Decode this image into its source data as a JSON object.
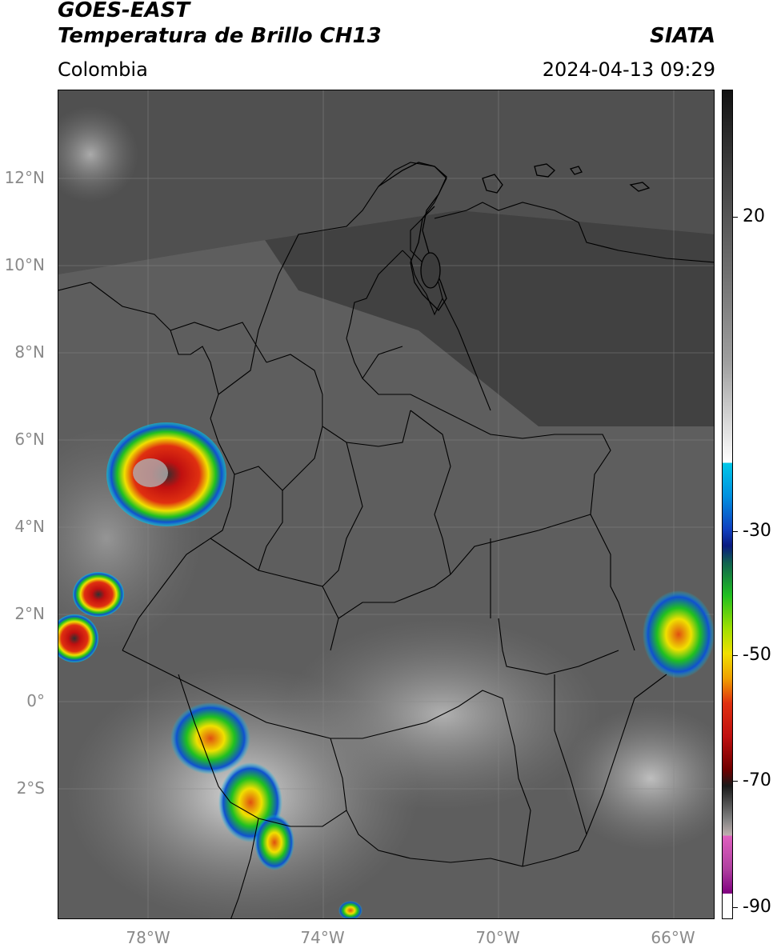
{
  "header": {
    "title_line1": "GOES-EAST",
    "title_line2": "Temperatura de Brillo CH13",
    "brand": "SIATA",
    "region": "Colombia",
    "timestamp": "2024-04-13 09:29"
  },
  "axes": {
    "lat_labels": [
      "12°N",
      "10°N",
      "8°N",
      "6°N",
      "4°N",
      "2°N",
      "0°",
      "2°S"
    ],
    "lon_labels": [
      "78°W",
      "74°W",
      "70°W",
      "66°W"
    ]
  },
  "colorbar": {
    "tick_labels": [
      "20",
      "-30",
      "-50",
      "-70",
      "-90"
    ],
    "colors": {
      "warm_dark": "#1a1a1a",
      "mid_gray": "#7a7a7a",
      "light_gray": "#e0e0e0",
      "cyan": "#00c8e8",
      "blue": "#1040c0",
      "navy": "#0a1a80",
      "green": "#20c020",
      "yellow": "#f0e000",
      "orange": "#f08000",
      "red": "#d01010",
      "dark_red": "#400000",
      "pink": "#e060c0",
      "purple": "#800080"
    }
  },
  "map": {
    "background_color": "#5c5c5c",
    "border_color": "#000000",
    "grid_color": "#9a9a9a"
  }
}
